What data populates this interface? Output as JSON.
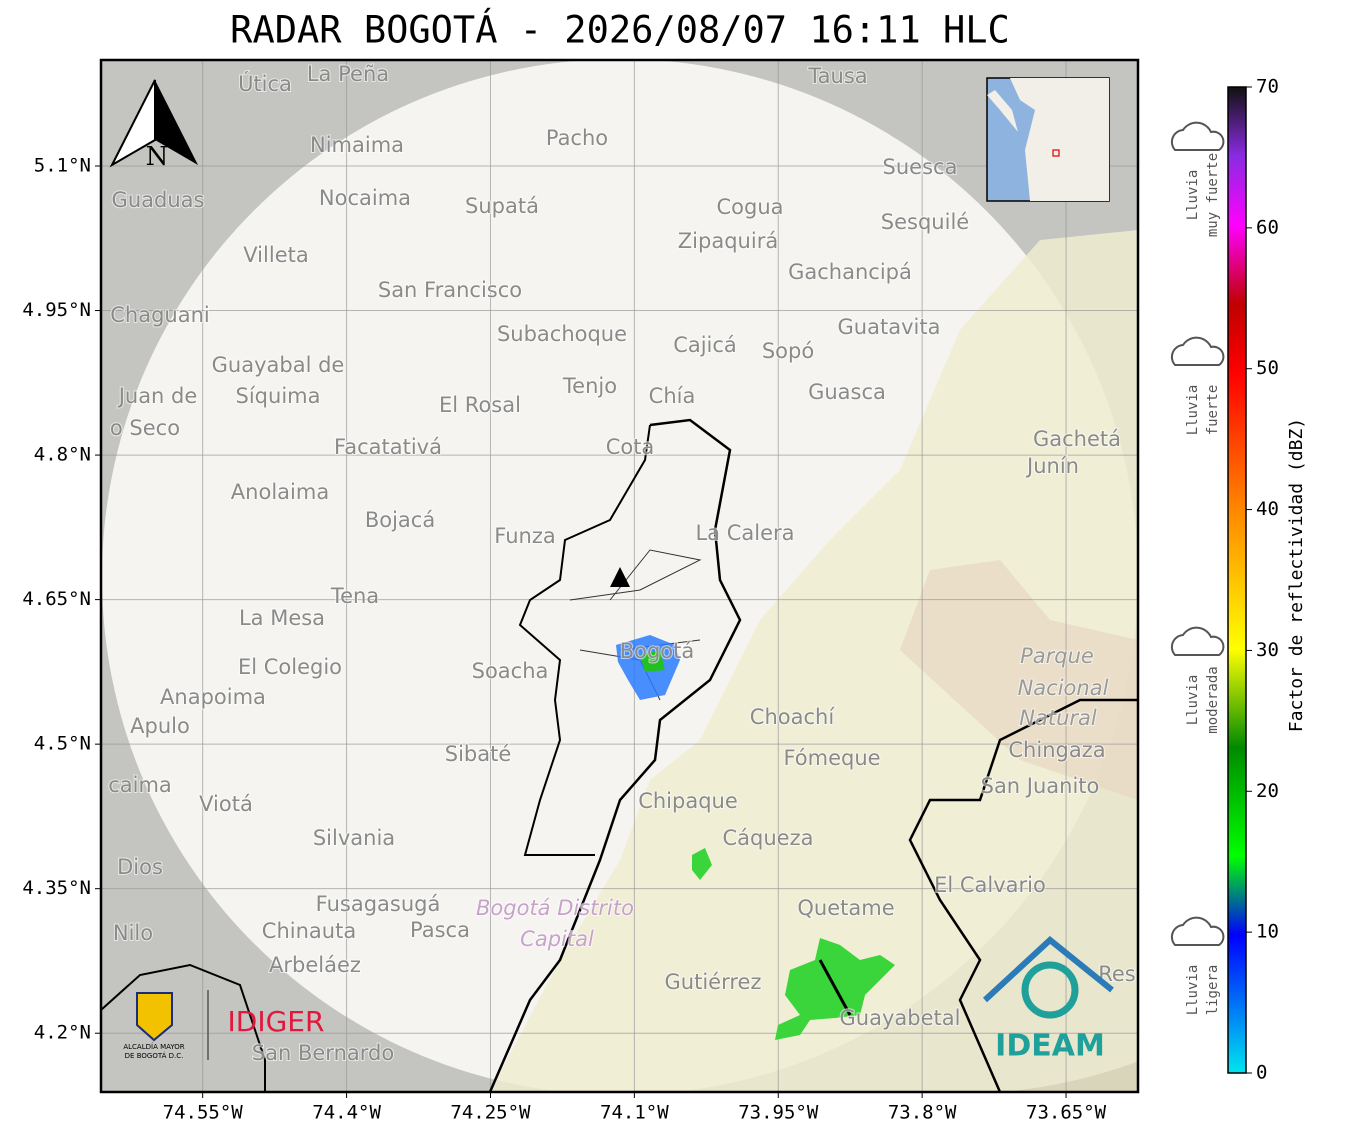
{
  "title": "RADAR BOGOTÁ - 2026/08/07 16:11 HLC",
  "map": {
    "xlim": [
      -74.656,
      -73.575
    ],
    "ylim": [
      4.139,
      5.21
    ],
    "xticks": [
      {
        "value": -74.55,
        "label": "74.55°W"
      },
      {
        "value": -74.4,
        "label": "74.4°W"
      },
      {
        "value": -74.25,
        "label": "74.25°W"
      },
      {
        "value": -74.1,
        "label": "74.1°W"
      },
      {
        "value": -73.95,
        "label": "73.95°W"
      },
      {
        "value": -73.8,
        "label": "73.8°W"
      },
      {
        "value": -73.65,
        "label": "73.65°W"
      }
    ],
    "yticks": [
      {
        "value": 5.1,
        "label": "5.1°N"
      },
      {
        "value": 4.95,
        "label": "4.95°N"
      },
      {
        "value": 4.8,
        "label": "4.8°N"
      },
      {
        "value": 4.65,
        "label": "4.65°N"
      },
      {
        "value": 4.5,
        "label": "4.5°N"
      },
      {
        "value": 4.35,
        "label": "4.35°N"
      },
      {
        "value": 4.2,
        "label": "4.2°N"
      }
    ],
    "north": "N",
    "places": [
      "La Peña",
      "Útica",
      "Tausa",
      "Pacho",
      "Nimaima",
      "Suesca",
      "Guaduas",
      "Nocaima",
      "Supatá",
      "Cogua",
      "Sesquilé",
      "Zipaquirá",
      "Villeta",
      "Gachancipá",
      "San Francisco",
      "Chaguani",
      "Guatavita",
      "Subachoque",
      "Cajicá",
      "Sopó",
      "Guayabal de",
      "Síquima",
      "Tenjo",
      "Juan de",
      "Guasca",
      "Chía",
      "El Rosal",
      "o Seco",
      "Facatativá",
      "Cota",
      "Gachetá",
      "Junín",
      "Anolaima",
      "Bojacá",
      "Funza",
      "La Calera",
      "Tena",
      "La Mesa",
      "Bogotá",
      "El Colegio",
      "Soacha",
      "Parque",
      "Nacional",
      "Natural",
      "Anapoima",
      "Apulo",
      "Choachí",
      "Chingaza",
      "Sibaté",
      "Fómeque",
      "San Juanito",
      "caima",
      "Viotá",
      "Chipaque",
      "Silvania",
      "Cáqueza",
      "Dios",
      "El Calvario",
      "Fusagasugá",
      "Quetame",
      "Bogotá Distrito",
      "Capital",
      "Nilo",
      "Chinauta",
      "Pasca",
      "Arbeláez",
      "Gutiérrez",
      "Guayabetal",
      "San Bernardo",
      "Res"
    ]
  },
  "colorbar": {
    "label": "Factor de reflectividad (dBZ)",
    "lim": [
      0,
      70
    ],
    "ticks": [
      0,
      10,
      20,
      30,
      40,
      50,
      60,
      70
    ]
  },
  "rain_levels": [
    {
      "lines": [
        "Lluvia",
        "ligera"
      ]
    },
    {
      "lines": [
        "Lluvia",
        "moderada"
      ]
    },
    {
      "lines": [
        "Lluvia",
        "fuerte"
      ]
    },
    {
      "lines": [
        "Lluvia",
        "muy fuerte"
      ]
    }
  ],
  "logos": {
    "alcaldia": [
      "ALCALDÍA MAYOR",
      "DE BOGOTÁ D.C."
    ],
    "idiger": "IDIGER",
    "ideam": "IDEAM"
  }
}
